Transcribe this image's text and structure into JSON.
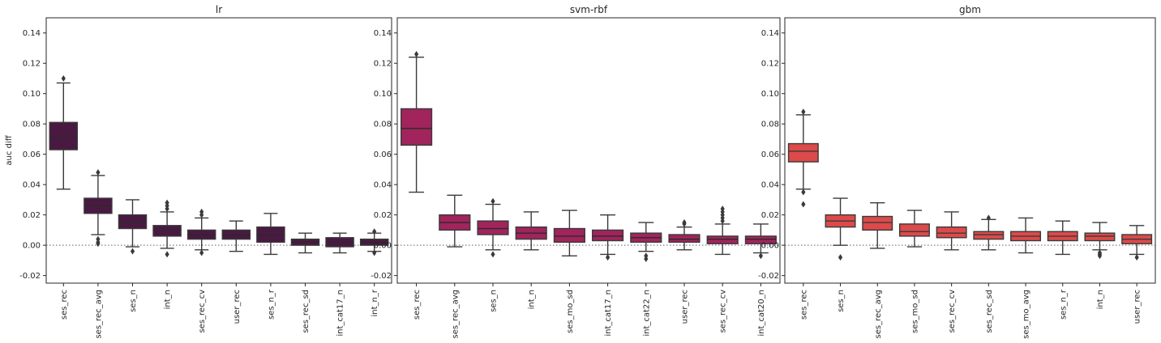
{
  "chart_data": [
    {
      "type": "box",
      "title": "lr",
      "ylabel": "auc diff",
      "ylim": [
        -0.025,
        0.15
      ],
      "yticks": [
        "0.14",
        "0.12",
        "0.10",
        "0.08",
        "0.06",
        "0.04",
        "0.02",
        "0.00",
        "-0.02"
      ],
      "reference_line": 0.0,
      "box_color": "#4a1942",
      "median_color": "#2a2a2a",
      "categories": [
        "ses_rec",
        "ses_rec_avg",
        "ses_n",
        "int_n",
        "ses_rec_cv",
        "user_rec",
        "ses_n_r",
        "ses_rec_sd",
        "int_cat17_n",
        "int_n_r"
      ],
      "boxes": [
        {
          "whisker_low": 0.037,
          "q1": 0.063,
          "median": 0.071,
          "q3": 0.081,
          "whisker_high": 0.107,
          "outliers": [
            0.11
          ]
        },
        {
          "whisker_low": 0.007,
          "q1": 0.021,
          "median": 0.026,
          "q3": 0.031,
          "whisker_high": 0.046,
          "outliers": [
            0.048,
            0.004,
            0.002,
            0.001
          ]
        },
        {
          "whisker_low": -0.001,
          "q1": 0.011,
          "median": 0.015,
          "q3": 0.02,
          "whisker_high": 0.03,
          "outliers": [
            -0.004
          ]
        },
        {
          "whisker_low": -0.002,
          "q1": 0.006,
          "median": 0.01,
          "q3": 0.013,
          "whisker_high": 0.022,
          "outliers": [
            0.024,
            0.026,
            0.028,
            -0.006
          ]
        },
        {
          "whisker_low": -0.003,
          "q1": 0.004,
          "median": 0.007,
          "q3": 0.01,
          "whisker_high": 0.018,
          "outliers": [
            0.02,
            0.022,
            -0.005
          ]
        },
        {
          "whisker_low": -0.004,
          "q1": 0.004,
          "median": 0.007,
          "q3": 0.01,
          "whisker_high": 0.016,
          "outliers": []
        },
        {
          "whisker_low": -0.006,
          "q1": 0.002,
          "median": 0.007,
          "q3": 0.012,
          "whisker_high": 0.021,
          "outliers": []
        },
        {
          "whisker_low": -0.005,
          "q1": 0.0,
          "median": 0.002,
          "q3": 0.004,
          "whisker_high": 0.008,
          "outliers": []
        },
        {
          "whisker_low": -0.005,
          "q1": -0.001,
          "median": 0.002,
          "q3": 0.005,
          "whisker_high": 0.008,
          "outliers": []
        },
        {
          "whisker_low": -0.004,
          "q1": 0.0,
          "median": 0.002,
          "q3": 0.004,
          "whisker_high": 0.008,
          "outliers": [
            0.009,
            -0.005
          ]
        }
      ]
    },
    {
      "type": "box",
      "title": "svm-rbf",
      "ylabel": "",
      "ylim": [
        -0.025,
        0.15
      ],
      "yticks": [
        "0.14",
        "0.12",
        "0.10",
        "0.08",
        "0.06",
        "0.04",
        "0.02",
        "0.00",
        "-0.02"
      ],
      "reference_line": 0.0,
      "box_color": "#a1245c",
      "median_color": "#2a2a2a",
      "categories": [
        "ses_rec",
        "ses_rec_avg",
        "ses_n",
        "int_n",
        "ses_mo_sd",
        "int_cat17_n",
        "int_cat22_n",
        "user_rec",
        "ses_rec_cv",
        "int_cat20_n"
      ],
      "boxes": [
        {
          "whisker_low": 0.035,
          "q1": 0.066,
          "median": 0.077,
          "q3": 0.09,
          "whisker_high": 0.124,
          "outliers": [
            0.126
          ]
        },
        {
          "whisker_low": -0.001,
          "q1": 0.01,
          "median": 0.015,
          "q3": 0.02,
          "whisker_high": 0.033,
          "outliers": []
        },
        {
          "whisker_low": -0.003,
          "q1": 0.007,
          "median": 0.011,
          "q3": 0.016,
          "whisker_high": 0.027,
          "outliers": [
            0.029,
            -0.006
          ]
        },
        {
          "whisker_low": -0.003,
          "q1": 0.004,
          "median": 0.008,
          "q3": 0.012,
          "whisker_high": 0.022,
          "outliers": []
        },
        {
          "whisker_low": -0.007,
          "q1": 0.002,
          "median": 0.006,
          "q3": 0.011,
          "whisker_high": 0.023,
          "outliers": []
        },
        {
          "whisker_low": -0.006,
          "q1": 0.003,
          "median": 0.006,
          "q3": 0.01,
          "whisker_high": 0.02,
          "outliers": [
            -0.008
          ]
        },
        {
          "whisker_low": -0.004,
          "q1": 0.002,
          "median": 0.005,
          "q3": 0.008,
          "whisker_high": 0.015,
          "outliers": [
            -0.007,
            -0.009
          ]
        },
        {
          "whisker_low": -0.003,
          "q1": 0.002,
          "median": 0.004,
          "q3": 0.007,
          "whisker_high": 0.012,
          "outliers": [
            0.014,
            0.015
          ]
        },
        {
          "whisker_low": -0.006,
          "q1": 0.001,
          "median": 0.004,
          "q3": 0.006,
          "whisker_high": 0.014,
          "outliers": [
            0.016,
            0.018,
            0.02,
            0.022,
            0.024
          ]
        },
        {
          "whisker_low": -0.005,
          "q1": 0.001,
          "median": 0.004,
          "q3": 0.006,
          "whisker_high": 0.014,
          "outliers": [
            -0.007
          ]
        }
      ]
    },
    {
      "type": "box",
      "title": "gbm",
      "ylabel": "",
      "ylim": [
        -0.025,
        0.15
      ],
      "yticks": [
        "0.14",
        "0.12",
        "0.10",
        "0.08",
        "0.06",
        "0.04",
        "0.02",
        "0.00",
        "-0.02"
      ],
      "reference_line": 0.0,
      "box_color": "#dc4a4a",
      "median_color": "#3a3a3a",
      "categories": [
        "ses_rec",
        "ses_n",
        "ses_rec_avg",
        "ses_mo_sd",
        "ses_rec_cv",
        "ses_rec_sd",
        "ses_mo_avg",
        "ses_n_r",
        "int_n",
        "user_rec"
      ],
      "boxes": [
        {
          "whisker_low": 0.037,
          "q1": 0.055,
          "median": 0.062,
          "q3": 0.067,
          "whisker_high": 0.086,
          "outliers": [
            0.088,
            0.035,
            0.027
          ]
        },
        {
          "whisker_low": 0.0,
          "q1": 0.012,
          "median": 0.016,
          "q3": 0.02,
          "whisker_high": 0.031,
          "outliers": [
            -0.008
          ]
        },
        {
          "whisker_low": -0.002,
          "q1": 0.01,
          "median": 0.015,
          "q3": 0.019,
          "whisker_high": 0.028,
          "outliers": []
        },
        {
          "whisker_low": -0.001,
          "q1": 0.006,
          "median": 0.009,
          "q3": 0.014,
          "whisker_high": 0.023,
          "outliers": []
        },
        {
          "whisker_low": -0.003,
          "q1": 0.005,
          "median": 0.008,
          "q3": 0.012,
          "whisker_high": 0.022,
          "outliers": []
        },
        {
          "whisker_low": -0.003,
          "q1": 0.004,
          "median": 0.007,
          "q3": 0.009,
          "whisker_high": 0.017,
          "outliers": [
            0.018
          ]
        },
        {
          "whisker_low": -0.005,
          "q1": 0.003,
          "median": 0.006,
          "q3": 0.009,
          "whisker_high": 0.018,
          "outliers": []
        },
        {
          "whisker_low": -0.006,
          "q1": 0.003,
          "median": 0.006,
          "q3": 0.009,
          "whisker_high": 0.016,
          "outliers": []
        },
        {
          "whisker_low": -0.003,
          "q1": 0.003,
          "median": 0.006,
          "q3": 0.008,
          "whisker_high": 0.015,
          "outliers": [
            -0.005,
            -0.006,
            -0.007
          ]
        },
        {
          "whisker_low": -0.006,
          "q1": 0.001,
          "median": 0.004,
          "q3": 0.007,
          "whisker_high": 0.013,
          "outliers": [
            -0.008
          ]
        }
      ]
    }
  ]
}
